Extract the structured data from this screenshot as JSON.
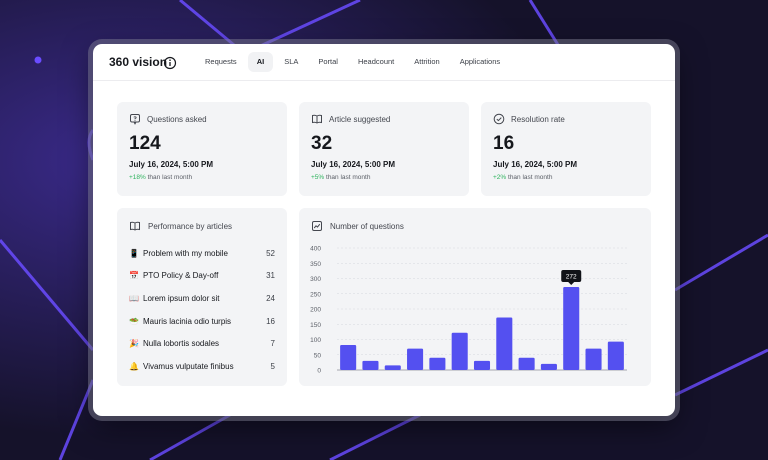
{
  "app": {
    "title": "360 vision"
  },
  "tabs": [
    {
      "label": "Requests",
      "active": false
    },
    {
      "label": "AI",
      "active": true
    },
    {
      "label": "SLA",
      "active": false
    },
    {
      "label": "Portal",
      "active": false
    },
    {
      "label": "Headcount",
      "active": false
    },
    {
      "label": "Attrition",
      "active": false
    },
    {
      "label": "Applications",
      "active": false
    }
  ],
  "stats": [
    {
      "title": "Questions asked",
      "icon": "question-bubble-icon",
      "value": "124",
      "date": "July 16, 2024, 5:00 PM",
      "change": "+18%",
      "change_suffix": " than last month"
    },
    {
      "title": "Article suggested",
      "icon": "book-icon",
      "value": "32",
      "date": "July 16, 2024, 5:00 PM",
      "change": "+5%",
      "change_suffix": " than last month"
    },
    {
      "title": "Resolution rate",
      "icon": "check-circle-icon",
      "value": "16",
      "date": "July 16, 2024, 5:00 PM",
      "change": "+2%",
      "change_suffix": " than last month"
    }
  ],
  "articles": {
    "title": "Performance by articles",
    "icon": "book-icon",
    "items": [
      {
        "emoji": "📱",
        "label": "Problem with my mobile",
        "count": "52"
      },
      {
        "emoji": "📅",
        "label": "PTO Policy & Day-off",
        "count": "31"
      },
      {
        "emoji": "📖",
        "label": "Lorem ipsum dolor sit",
        "count": "24"
      },
      {
        "emoji": "🥗",
        "label": "Mauris lacinia odio turpis",
        "count": "16"
      },
      {
        "emoji": "🎉",
        "label": "Nulla lobortis sodales",
        "count": "7"
      },
      {
        "emoji": "🔔",
        "label": "Vivamus vulputate finibus",
        "count": "5"
      }
    ]
  },
  "chart_data": {
    "type": "bar",
    "title": "Number of questions",
    "icon": "chart-icon",
    "values": [
      82,
      30,
      15,
      70,
      40,
      122,
      30,
      172,
      40,
      20,
      272,
      70,
      93
    ],
    "ylim": [
      0,
      400
    ],
    "yticks": [
      0,
      50,
      100,
      150,
      200,
      250,
      300,
      350,
      400
    ],
    "highlight_index": 10,
    "highlight_label": "272",
    "grid": true,
    "bar_color": "#5450f0"
  },
  "colors": {
    "accent": "#5450f0",
    "positive": "#2fb35e"
  }
}
